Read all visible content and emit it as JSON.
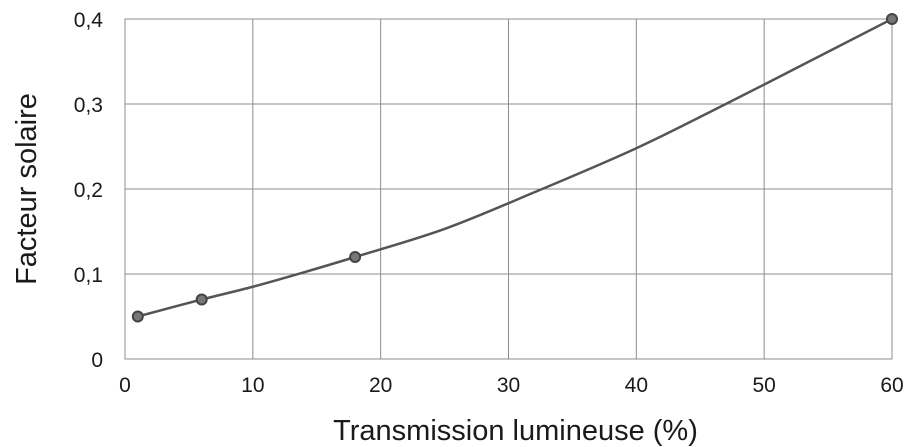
{
  "chart_data": {
    "type": "line",
    "title": "",
    "xlabel": "Transmission lumineuse (%)",
    "ylabel": "Facteur solaire",
    "xlim": [
      0,
      60
    ],
    "ylim": [
      0,
      0.4
    ],
    "x_ticks": [
      0,
      10,
      20,
      30,
      40,
      50,
      60
    ],
    "x_tick_labels": [
      "0",
      "10",
      "20",
      "30",
      "40",
      "50",
      "60"
    ],
    "y_ticks": [
      0,
      0.1,
      0.2,
      0.3,
      0.4
    ],
    "y_tick_labels": [
      "0",
      "0,1",
      "0,2",
      "0,3",
      "0,4"
    ],
    "grid": true,
    "legend": "none",
    "series": [
      {
        "points": [
          {
            "x": 1,
            "y": 0.05
          },
          {
            "x": 6,
            "y": 0.07
          },
          {
            "x": 18,
            "y": 0.12
          },
          {
            "x": 60,
            "y": 0.4
          }
        ],
        "curve": [
          {
            "x": 1,
            "y": 0.05
          },
          {
            "x": 6,
            "y": 0.07
          },
          {
            "x": 10,
            "y": 0.085
          },
          {
            "x": 14,
            "y": 0.102
          },
          {
            "x": 18,
            "y": 0.12
          },
          {
            "x": 25,
            "y": 0.153
          },
          {
            "x": 32,
            "y": 0.196
          },
          {
            "x": 40,
            "y": 0.248
          },
          {
            "x": 47,
            "y": 0.3
          },
          {
            "x": 53,
            "y": 0.346
          },
          {
            "x": 60,
            "y": 0.4
          }
        ]
      }
    ],
    "colors": {
      "line": "#555555",
      "marker_fill": "#777777",
      "marker_stroke": "#444444",
      "grid": "#8c8c8c"
    }
  }
}
